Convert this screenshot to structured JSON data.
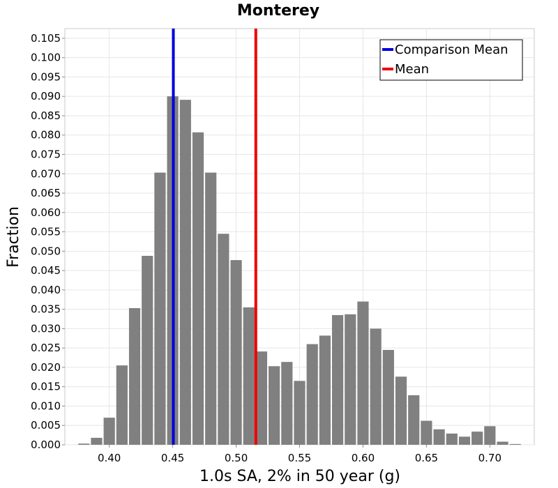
{
  "chart_data": {
    "type": "bar",
    "title": "Monterey",
    "xlabel": "1.0s SA, 2% in 50 year (g)",
    "ylabel": "Fraction",
    "xlim": [
      0.365,
      0.735
    ],
    "ylim": [
      0.0,
      0.1075
    ],
    "bin_width": 0.01,
    "x_ticks": [
      "0.40",
      "0.45",
      "0.50",
      "0.55",
      "0.60",
      "0.65",
      "0.70"
    ],
    "y_ticks": [
      "0.000",
      "0.005",
      "0.010",
      "0.015",
      "0.020",
      "0.025",
      "0.030",
      "0.035",
      "0.040",
      "0.045",
      "0.050",
      "0.055",
      "0.060",
      "0.065",
      "0.070",
      "0.075",
      "0.080",
      "0.085",
      "0.090",
      "0.095",
      "0.100",
      "0.105"
    ],
    "grid": true,
    "bar_color": "#808080",
    "bars": [
      {
        "x": 0.38,
        "value": 0.0003
      },
      {
        "x": 0.39,
        "value": 0.0018
      },
      {
        "x": 0.4,
        "value": 0.007
      },
      {
        "x": 0.41,
        "value": 0.0205
      },
      {
        "x": 0.42,
        "value": 0.0353
      },
      {
        "x": 0.43,
        "value": 0.0488
      },
      {
        "x": 0.44,
        "value": 0.0703
      },
      {
        "x": 0.45,
        "value": 0.09
      },
      {
        "x": 0.46,
        "value": 0.0891
      },
      {
        "x": 0.47,
        "value": 0.0807
      },
      {
        "x": 0.48,
        "value": 0.0703
      },
      {
        "x": 0.49,
        "value": 0.0545
      },
      {
        "x": 0.5,
        "value": 0.0477
      },
      {
        "x": 0.51,
        "value": 0.0355
      },
      {
        "x": 0.52,
        "value": 0.0241
      },
      {
        "x": 0.53,
        "value": 0.0203
      },
      {
        "x": 0.54,
        "value": 0.0214
      },
      {
        "x": 0.55,
        "value": 0.0165
      },
      {
        "x": 0.56,
        "value": 0.026
      },
      {
        "x": 0.57,
        "value": 0.0282
      },
      {
        "x": 0.58,
        "value": 0.0335
      },
      {
        "x": 0.59,
        "value": 0.0337
      },
      {
        "x": 0.6,
        "value": 0.037
      },
      {
        "x": 0.61,
        "value": 0.03
      },
      {
        "x": 0.62,
        "value": 0.0245
      },
      {
        "x": 0.63,
        "value": 0.0176
      },
      {
        "x": 0.64,
        "value": 0.0128
      },
      {
        "x": 0.65,
        "value": 0.0062
      },
      {
        "x": 0.66,
        "value": 0.004
      },
      {
        "x": 0.67,
        "value": 0.0029
      },
      {
        "x": 0.68,
        "value": 0.0021
      },
      {
        "x": 0.69,
        "value": 0.0034
      },
      {
        "x": 0.7,
        "value": 0.0048
      },
      {
        "x": 0.71,
        "value": 0.0008
      },
      {
        "x": 0.72,
        "value": 0.0002
      }
    ],
    "vlines": [
      {
        "name": "Comparison Mean",
        "x": 0.4505,
        "color": "#0000dd"
      },
      {
        "name": "Mean",
        "x": 0.5155,
        "color": "#ee0000"
      }
    ],
    "legend": {
      "position": "top-right",
      "entries": [
        {
          "label": "Comparison Mean",
          "color": "#0000dd"
        },
        {
          "label": "Mean",
          "color": "#ee0000"
        }
      ]
    }
  }
}
